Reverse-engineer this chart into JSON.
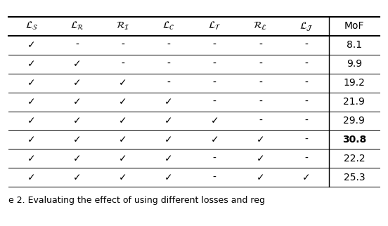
{
  "headers": [
    "$\\mathcal{L}_{\\mathcal{S}}$",
    "$\\mathcal{L}_{\\mathcal{R}}$",
    "$\\mathcal{R}_{\\mathcal{I}}$",
    "$\\mathcal{L}_{\\mathcal{C}}$",
    "$\\mathcal{L}_{\\mathcal{T}}$",
    "$\\mathcal{R}_{\\mathcal{L}}$",
    "$\\mathcal{L}_{\\mathcal{J}}$",
    "MoF"
  ],
  "rows": [
    [
      "✓",
      "-",
      "-",
      "-",
      "-",
      "-",
      "-",
      "8.1"
    ],
    [
      "✓",
      "✓",
      "-",
      "-",
      "-",
      "-",
      "-",
      "9.9"
    ],
    [
      "✓",
      "✓",
      "✓",
      "-",
      "-",
      "-",
      "-",
      "19.2"
    ],
    [
      "✓",
      "✓",
      "✓",
      "✓",
      "-",
      "-",
      "-",
      "21.9"
    ],
    [
      "✓",
      "✓",
      "✓",
      "✓",
      "✓",
      "-",
      "-",
      "29.9"
    ],
    [
      "✓",
      "✓",
      "✓",
      "✓",
      "✓",
      "✓",
      "-",
      "30.8"
    ],
    [
      "✓",
      "✓",
      "✓",
      "✓",
      "-",
      "✓",
      "-",
      "22.2"
    ],
    [
      "✓",
      "✓",
      "✓",
      "✓",
      "-",
      "✓",
      "✓",
      "25.3"
    ]
  ],
  "bold_row": 5,
  "caption": "e 2. Evaluating the effect of using different losses and reg",
  "bg_color": "#ffffff",
  "text_color": "#000000",
  "line_color": "#000000",
  "figsize": [
    5.52,
    3.22
  ],
  "dpi": 100
}
